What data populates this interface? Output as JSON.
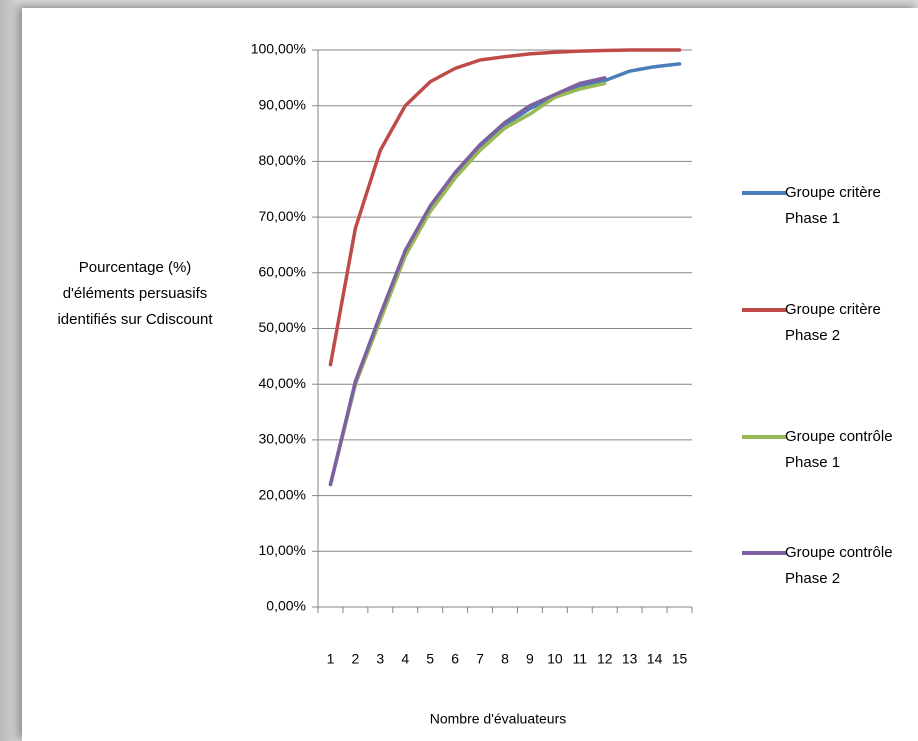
{
  "chart_data": {
    "type": "line",
    "ylabel": "Pourcentage (%) d'éléments persuasifs identifiés sur Cdiscount",
    "xlabel": "Nombre d'évaluateurs",
    "categories": [
      "1",
      "2",
      "3",
      "4",
      "5",
      "6",
      "7",
      "8",
      "9",
      "10",
      "11",
      "12",
      "13",
      "14",
      "15"
    ],
    "series": [
      {
        "name": "Groupe critère Phase 1",
        "color": "#4a7ebb",
        "values": [
          22,
          40,
          52,
          63.5,
          71.5,
          77.5,
          82.5,
          86.5,
          89.5,
          91.5,
          93.5,
          94.5,
          96.2,
          97,
          97.5
        ]
      },
      {
        "name": "Groupe critère Phase 2",
        "color": "#be4b48",
        "values": [
          43.5,
          68,
          82,
          90,
          94.3,
          96.7,
          98.2,
          98.8,
          99.3,
          99.6,
          99.8,
          99.9,
          100,
          100,
          100
        ]
      },
      {
        "name": "Groupe contrôle Phase 1",
        "color": "#98b954",
        "values": [
          22,
          40,
          51.5,
          63,
          71,
          77,
          82,
          86,
          88.5,
          91.5,
          93,
          94,
          null,
          null,
          null
        ]
      },
      {
        "name": "Groupe contrôle Phase 2",
        "color": "#7d60a0",
        "values": [
          22,
          40.5,
          52.5,
          64,
          72,
          78,
          83,
          87,
          90,
          92,
          94,
          95,
          null,
          null,
          null
        ]
      }
    ],
    "ylim": [
      0,
      100
    ],
    "yticks": [
      {
        "value": 0,
        "label": "0,00%"
      },
      {
        "value": 10,
        "label": "10,00%"
      },
      {
        "value": 20,
        "label": "20,00%"
      },
      {
        "value": 30,
        "label": "30,00%"
      },
      {
        "value": 40,
        "label": "40,00%"
      },
      {
        "value": 50,
        "label": "50,00%"
      },
      {
        "value": 60,
        "label": "60,00%"
      },
      {
        "value": 70,
        "label": "70,00%"
      },
      {
        "value": 80,
        "label": "80,00%"
      },
      {
        "value": 90,
        "label": "90,00%"
      },
      {
        "value": 100,
        "label": "100,00%"
      }
    ],
    "grid": true,
    "legend": "right"
  }
}
